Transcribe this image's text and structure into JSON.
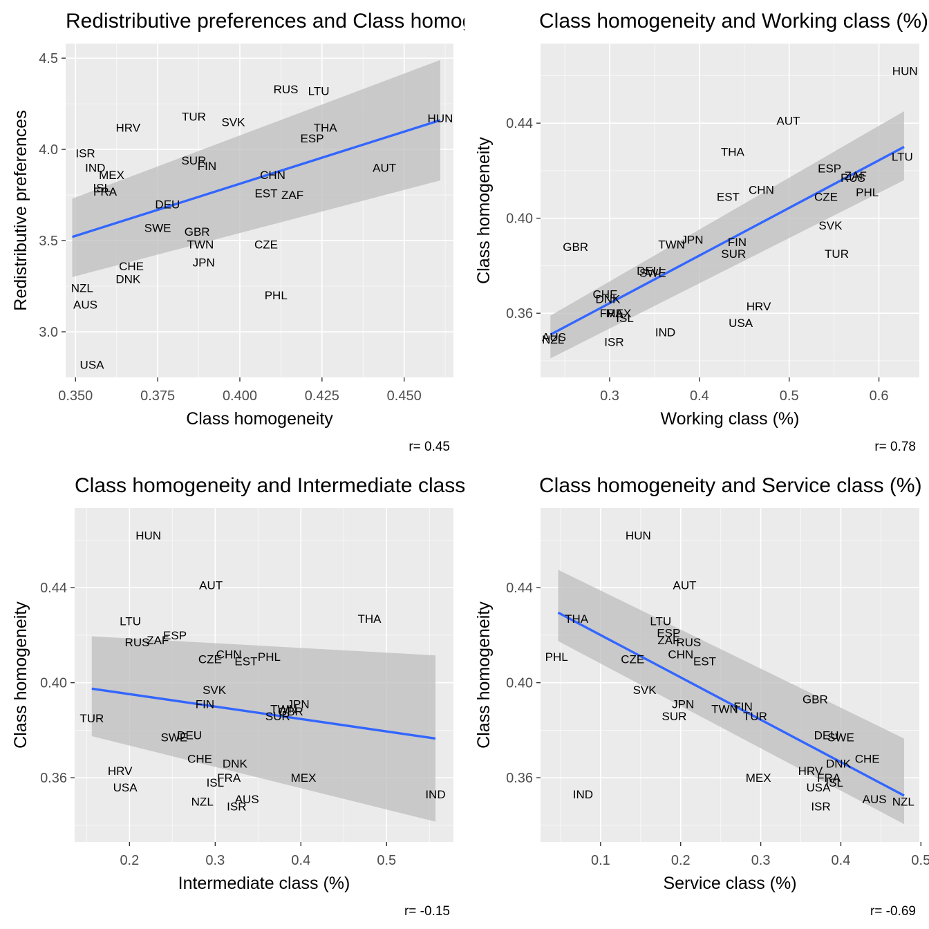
{
  "chart_data": [
    {
      "type": "scatter",
      "title": "Redistributive preferences and Class homogeneity",
      "xlabel": "Class homogeneity",
      "ylabel": "Redistributive preferences",
      "caption": "r= 0.45",
      "xlim": [
        0.347,
        0.465
      ],
      "ylim": [
        2.75,
        4.58
      ],
      "xticks": [
        "0.350",
        "0.375",
        "0.400",
        "0.425",
        "0.450"
      ],
      "yticks": [
        "3.0",
        "3.5",
        "4.0",
        "4.5"
      ],
      "xtick_values": [
        0.35,
        0.375,
        0.4,
        0.425,
        0.45
      ],
      "ytick_values": [
        3.0,
        3.5,
        4.0,
        4.5
      ],
      "grid": true,
      "fit": {
        "x": [
          0.349,
          0.461
        ],
        "y": [
          3.52,
          4.16
        ],
        "band_lower": [
          3.3,
          3.83
        ],
        "band_upper": [
          3.73,
          4.49
        ]
      },
      "points": [
        {
          "label": "RUS",
          "x": 0.414,
          "y": 4.33
        },
        {
          "label": "LTU",
          "x": 0.424,
          "y": 4.32
        },
        {
          "label": "HUN",
          "x": 0.461,
          "y": 4.17
        },
        {
          "label": "TUR",
          "x": 0.386,
          "y": 4.18
        },
        {
          "label": "SVK",
          "x": 0.398,
          "y": 4.15
        },
        {
          "label": "HRV",
          "x": 0.366,
          "y": 4.12
        },
        {
          "label": "THA",
          "x": 0.426,
          "y": 4.12
        },
        {
          "label": "ESP",
          "x": 0.422,
          "y": 4.06
        },
        {
          "label": "ISR",
          "x": 0.353,
          "y": 3.98
        },
        {
          "label": "IND",
          "x": 0.356,
          "y": 3.9
        },
        {
          "label": "AUT",
          "x": 0.444,
          "y": 3.9
        },
        {
          "label": "SUR",
          "x": 0.386,
          "y": 3.94
        },
        {
          "label": "FIN",
          "x": 0.39,
          "y": 3.91
        },
        {
          "label": "MEX",
          "x": 0.361,
          "y": 3.86
        },
        {
          "label": "CHN",
          "x": 0.41,
          "y": 3.86
        },
        {
          "label": "ISL",
          "x": 0.358,
          "y": 3.79
        },
        {
          "label": "FRA",
          "x": 0.359,
          "y": 3.77
        },
        {
          "label": "EST",
          "x": 0.408,
          "y": 3.76
        },
        {
          "label": "ZAF",
          "x": 0.416,
          "y": 3.75
        },
        {
          "label": "DEU",
          "x": 0.378,
          "y": 3.7
        },
        {
          "label": "SWE",
          "x": 0.375,
          "y": 3.57
        },
        {
          "label": "GBR",
          "x": 0.387,
          "y": 3.55
        },
        {
          "label": "TWN",
          "x": 0.388,
          "y": 3.48
        },
        {
          "label": "CZE",
          "x": 0.408,
          "y": 3.48
        },
        {
          "label": "JPN",
          "x": 0.389,
          "y": 3.38
        },
        {
          "label": "CHE",
          "x": 0.367,
          "y": 3.36
        },
        {
          "label": "DNK",
          "x": 0.366,
          "y": 3.29
        },
        {
          "label": "NZL",
          "x": 0.352,
          "y": 3.24
        },
        {
          "label": "AUS",
          "x": 0.353,
          "y": 3.15
        },
        {
          "label": "PHL",
          "x": 0.411,
          "y": 3.2
        },
        {
          "label": "USA",
          "x": 0.355,
          "y": 2.82
        }
      ]
    },
    {
      "type": "scatter",
      "title": "Class homogeneity and Working class (%)",
      "xlabel": "Working class (%)",
      "ylabel": "Class homogeneity",
      "caption": "r= 0.78",
      "xlim": [
        0.223,
        0.645
      ],
      "ylim": [
        0.333,
        0.4735
      ],
      "xticks": [
        "0.3",
        "0.4",
        "0.5",
        "0.6"
      ],
      "yticks": [
        "0.36",
        "0.40",
        "0.44"
      ],
      "xtick_values": [
        0.3,
        0.4,
        0.5,
        0.6
      ],
      "ytick_values": [
        0.36,
        0.4,
        0.44
      ],
      "grid": true,
      "fit": {
        "x": [
          0.234,
          0.628
        ],
        "y": [
          0.351,
          0.43
        ],
        "band_lower": [
          0.341,
          0.416
        ],
        "band_upper": [
          0.359,
          0.445
        ]
      },
      "points": [
        {
          "label": "HUN",
          "x": 0.629,
          "y": 0.462
        },
        {
          "label": "AUT",
          "x": 0.499,
          "y": 0.441
        },
        {
          "label": "THA",
          "x": 0.437,
          "y": 0.428
        },
        {
          "label": "LTU",
          "x": 0.626,
          "y": 0.426
        },
        {
          "label": "ESP",
          "x": 0.545,
          "y": 0.421
        },
        {
          "label": "ZAF",
          "x": 0.574,
          "y": 0.418
        },
        {
          "label": "RUS",
          "x": 0.571,
          "y": 0.417
        },
        {
          "label": "CHN",
          "x": 0.469,
          "y": 0.412
        },
        {
          "label": "PHL",
          "x": 0.587,
          "y": 0.411
        },
        {
          "label": "EST",
          "x": 0.432,
          "y": 0.409
        },
        {
          "label": "CZE",
          "x": 0.541,
          "y": 0.409
        },
        {
          "label": "SVK",
          "x": 0.546,
          "y": 0.397
        },
        {
          "label": "GBR",
          "x": 0.262,
          "y": 0.388
        },
        {
          "label": "TWN",
          "x": 0.369,
          "y": 0.389
        },
        {
          "label": "JPN",
          "x": 0.392,
          "y": 0.391
        },
        {
          "label": "FIN",
          "x": 0.442,
          "y": 0.39
        },
        {
          "label": "SUR",
          "x": 0.438,
          "y": 0.385
        },
        {
          "label": "TUR",
          "x": 0.553,
          "y": 0.385
        },
        {
          "label": "DEU",
          "x": 0.344,
          "y": 0.378
        },
        {
          "label": "SWE",
          "x": 0.348,
          "y": 0.377
        },
        {
          "label": "CHE",
          "x": 0.295,
          "y": 0.368
        },
        {
          "label": "DNK",
          "x": 0.298,
          "y": 0.366
        },
        {
          "label": "HRV",
          "x": 0.466,
          "y": 0.363
        },
        {
          "label": "FRA",
          "x": 0.302,
          "y": 0.36
        },
        {
          "label": "MEX",
          "x": 0.31,
          "y": 0.36
        },
        {
          "label": "ISL",
          "x": 0.317,
          "y": 0.358
        },
        {
          "label": "USA",
          "x": 0.446,
          "y": 0.356
        },
        {
          "label": "IND",
          "x": 0.362,
          "y": 0.352
        },
        {
          "label": "AUS",
          "x": 0.238,
          "y": 0.35
        },
        {
          "label": "NZL",
          "x": 0.237,
          "y": 0.349
        },
        {
          "label": "ISR",
          "x": 0.305,
          "y": 0.348
        }
      ]
    },
    {
      "type": "scatter",
      "title": "Class homogeneity and Intermediate class (%)",
      "xlabel": "Intermediate class (%)",
      "ylabel": "Class homogeneity",
      "caption": "r= -0.15",
      "xlim": [
        0.136,
        0.578
      ],
      "ylim": [
        0.333,
        0.4735
      ],
      "xticks": [
        "0.2",
        "0.3",
        "0.4",
        "0.5"
      ],
      "yticks": [
        "0.36",
        "0.40",
        "0.44"
      ],
      "xtick_values": [
        0.2,
        0.3,
        0.4,
        0.5
      ],
      "ytick_values": [
        0.36,
        0.4,
        0.44
      ],
      "grid": true,
      "fit": {
        "x": [
          0.156,
          0.557
        ],
        "y": [
          0.3975,
          0.3765
        ],
        "band_lower": [
          0.3775,
          0.3415
        ],
        "band_upper": [
          0.4195,
          0.4115
        ]
      },
      "points": [
        {
          "label": "HUN",
          "x": 0.222,
          "y": 0.462
        },
        {
          "label": "AUT",
          "x": 0.295,
          "y": 0.441
        },
        {
          "label": "THA",
          "x": 0.48,
          "y": 0.427
        },
        {
          "label": "LTU",
          "x": 0.201,
          "y": 0.426
        },
        {
          "label": "ESP",
          "x": 0.253,
          "y": 0.42
        },
        {
          "label": "ZAF",
          "x": 0.233,
          "y": 0.418
        },
        {
          "label": "RUS",
          "x": 0.209,
          "y": 0.417
        },
        {
          "label": "CHN",
          "x": 0.316,
          "y": 0.412
        },
        {
          "label": "PHL",
          "x": 0.363,
          "y": 0.411
        },
        {
          "label": "CZE",
          "x": 0.294,
          "y": 0.41
        },
        {
          "label": "EST",
          "x": 0.336,
          "y": 0.409
        },
        {
          "label": "SVK",
          "x": 0.299,
          "y": 0.397
        },
        {
          "label": "FIN",
          "x": 0.288,
          "y": 0.391
        },
        {
          "label": "JPN",
          "x": 0.397,
          "y": 0.391
        },
        {
          "label": "TWN",
          "x": 0.38,
          "y": 0.389
        },
        {
          "label": "GBR",
          "x": 0.388,
          "y": 0.388
        },
        {
          "label": "SUR",
          "x": 0.373,
          "y": 0.386
        },
        {
          "label": "TUR",
          "x": 0.156,
          "y": 0.385
        },
        {
          "label": "DEU",
          "x": 0.27,
          "y": 0.378
        },
        {
          "label": "SWE",
          "x": 0.252,
          "y": 0.377
        },
        {
          "label": "CHE",
          "x": 0.282,
          "y": 0.368
        },
        {
          "label": "DNK",
          "x": 0.323,
          "y": 0.366
        },
        {
          "label": "HRV",
          "x": 0.189,
          "y": 0.363
        },
        {
          "label": "MEX",
          "x": 0.403,
          "y": 0.36
        },
        {
          "label": "FRA",
          "x": 0.316,
          "y": 0.36
        },
        {
          "label": "ISL",
          "x": 0.3,
          "y": 0.358
        },
        {
          "label": "USA",
          "x": 0.195,
          "y": 0.356
        },
        {
          "label": "IND",
          "x": 0.557,
          "y": 0.353
        },
        {
          "label": "AUS",
          "x": 0.337,
          "y": 0.351
        },
        {
          "label": "NZL",
          "x": 0.285,
          "y": 0.35
        },
        {
          "label": "ISR",
          "x": 0.325,
          "y": 0.348
        }
      ]
    },
    {
      "type": "scatter",
      "title": "Class homogeneity and Service class (%)",
      "xlabel": "Service class (%)",
      "ylabel": "Class homogeneity",
      "caption": "r= -0.69",
      "xlim": [
        0.025,
        0.498
      ],
      "ylim": [
        0.333,
        0.4735
      ],
      "xticks": [
        "0.1",
        "0.2",
        "0.3",
        "0.4",
        "0.5"
      ],
      "yticks": [
        "0.36",
        "0.40",
        "0.44"
      ],
      "xtick_values": [
        0.1,
        0.2,
        0.3,
        0.4,
        0.5
      ],
      "ytick_values": [
        0.36,
        0.4,
        0.44
      ],
      "grid": true,
      "fit": {
        "x": [
          0.047,
          0.479
        ],
        "y": [
          0.4295,
          0.3525
        ],
        "band_lower": [
          0.4175,
          0.3405
        ],
        "band_upper": [
          0.4475,
          0.3765
        ]
      },
      "points": [
        {
          "label": "HUN",
          "x": 0.147,
          "y": 0.462
        },
        {
          "label": "AUT",
          "x": 0.205,
          "y": 0.441
        },
        {
          "label": "THA",
          "x": 0.07,
          "y": 0.427
        },
        {
          "label": "LTU",
          "x": 0.175,
          "y": 0.426
        },
        {
          "label": "ESP",
          "x": 0.185,
          "y": 0.421
        },
        {
          "label": "ZAF",
          "x": 0.185,
          "y": 0.418
        },
        {
          "label": "RUS",
          "x": 0.21,
          "y": 0.417
        },
        {
          "label": "CHN",
          "x": 0.2,
          "y": 0.412
        },
        {
          "label": "PHL",
          "x": 0.045,
          "y": 0.411
        },
        {
          "label": "CZE",
          "x": 0.14,
          "y": 0.41
        },
        {
          "label": "EST",
          "x": 0.23,
          "y": 0.409
        },
        {
          "label": "SVK",
          "x": 0.155,
          "y": 0.397
        },
        {
          "label": "GBR",
          "x": 0.368,
          "y": 0.393
        },
        {
          "label": "JPN",
          "x": 0.203,
          "y": 0.391
        },
        {
          "label": "FIN",
          "x": 0.278,
          "y": 0.39
        },
        {
          "label": "TWN",
          "x": 0.255,
          "y": 0.389
        },
        {
          "label": "SUR",
          "x": 0.192,
          "y": 0.386
        },
        {
          "label": "TUR",
          "x": 0.293,
          "y": 0.386
        },
        {
          "label": "DEU",
          "x": 0.382,
          "y": 0.378
        },
        {
          "label": "SWE",
          "x": 0.4,
          "y": 0.377
        },
        {
          "label": "CHE",
          "x": 0.433,
          "y": 0.368
        },
        {
          "label": "DNK",
          "x": 0.397,
          "y": 0.366
        },
        {
          "label": "HRV",
          "x": 0.362,
          "y": 0.363
        },
        {
          "label": "MEX",
          "x": 0.297,
          "y": 0.36
        },
        {
          "label": "FRA",
          "x": 0.385,
          "y": 0.36
        },
        {
          "label": "ISL",
          "x": 0.392,
          "y": 0.358
        },
        {
          "label": "USA",
          "x": 0.372,
          "y": 0.356
        },
        {
          "label": "IND",
          "x": 0.078,
          "y": 0.353
        },
        {
          "label": "AUS",
          "x": 0.442,
          "y": 0.351
        },
        {
          "label": "NZL",
          "x": 0.478,
          "y": 0.35
        },
        {
          "label": "ISR",
          "x": 0.375,
          "y": 0.348
        }
      ]
    }
  ],
  "colors": {
    "panel_background": "#ebebeb",
    "grid_major": "#ffffff",
    "fit_line": "#3366ff",
    "confidence_band": "#bdbdbd",
    "tick_label": "#4d4d4d",
    "text": "#000000"
  }
}
